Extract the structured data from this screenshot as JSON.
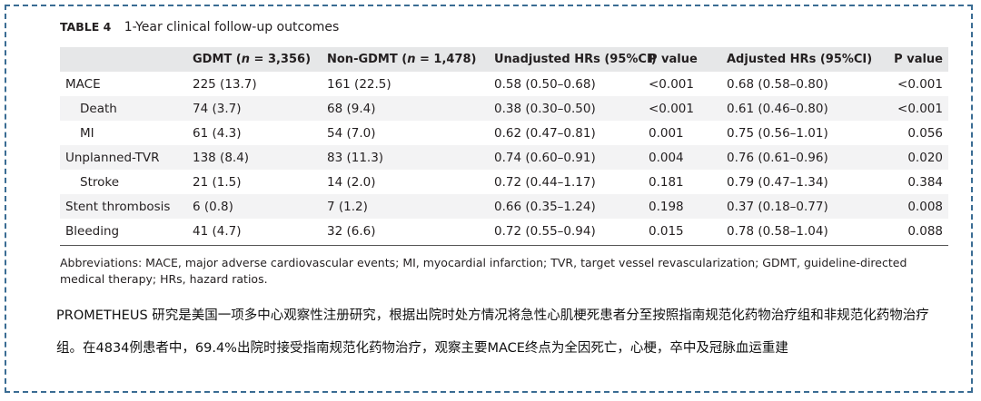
{
  "caption": {
    "label": "TABLE 4",
    "title": "1-Year clinical follow-up outcomes"
  },
  "table": {
    "headers": [
      "",
      "GDMT (n = 3,356)",
      "Non-GDMT (n = 1,478)",
      "Unadjusted HRs (95%CI)",
      "P value",
      "Adjusted HRs (95%CI)",
      "P value"
    ],
    "rows": [
      {
        "label": "MACE",
        "indent": false,
        "gdmt": "225 (13.7)",
        "non_gdmt": "161 (22.5)",
        "unadj": "0.58 (0.50–0.68)",
        "p1": "<0.001",
        "adj": "0.68 (0.58–0.80)",
        "p2": "<0.001"
      },
      {
        "label": "Death",
        "indent": true,
        "gdmt": "74 (3.7)",
        "non_gdmt": "68 (9.4)",
        "unadj": "0.38 (0.30–0.50)",
        "p1": "<0.001",
        "adj": "0.61 (0.46–0.80)",
        "p2": "<0.001"
      },
      {
        "label": "MI",
        "indent": true,
        "gdmt": "61 (4.3)",
        "non_gdmt": "54 (7.0)",
        "unadj": "0.62 (0.47–0.81)",
        "p1": "0.001",
        "adj": "0.75 (0.56–1.01)",
        "p2": "0.056"
      },
      {
        "label": "Unplanned-TVR",
        "indent": false,
        "gdmt": "138 (8.4)",
        "non_gdmt": "83 (11.3)",
        "unadj": "0.74 (0.60–0.91)",
        "p1": "0.004",
        "adj": "0.76 (0.61–0.96)",
        "p2": "0.020"
      },
      {
        "label": "Stroke",
        "indent": true,
        "gdmt": "21 (1.5)",
        "non_gdmt": "14 (2.0)",
        "unadj": "0.72 (0.44–1.17)",
        "p1": "0.181",
        "adj": "0.79 (0.47–1.34)",
        "p2": "0.384"
      },
      {
        "label": "Stent thrombosis",
        "indent": false,
        "gdmt": "6 (0.8)",
        "non_gdmt": "7 (1.2)",
        "unadj": "0.66 (0.35–1.24)",
        "p1": "0.198",
        "adj": "0.37 (0.18–0.77)",
        "p2": "0.008"
      },
      {
        "label": "Bleeding",
        "indent": false,
        "gdmt": "41 (4.7)",
        "non_gdmt": "32 (6.6)",
        "unadj": "0.72 (0.55–0.94)",
        "p1": "0.015",
        "adj": "0.78 (0.58–1.04)",
        "p2": "0.088"
      }
    ]
  },
  "abbreviations": "Abbreviations: MACE, major adverse cardiovascular events; MI, myocardial infarction; TVR, target vessel revascularization; GDMT, guideline-directed medical therapy; HRs, hazard ratios.",
  "chinese_note": "PROMETHEUS 研究是美国一项多中心观察性注册研究，根据出院时处方情况将急性心肌梗死患者分至按照指南规范化药物治疗组和非规范化药物治疗组。在4834例患者中，69.4%出院时接受指南规范化药物治疗，观察主要MACE终点为全因死亡，心梗，卒中及冠脉血运重建",
  "colors": {
    "frame": "#3a6c93",
    "header_bg": "#e6e7e8",
    "row_bg": "#f3f3f4"
  }
}
